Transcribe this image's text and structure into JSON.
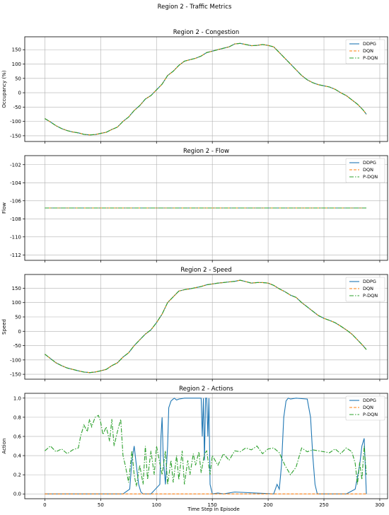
{
  "title": "Region 2 - Traffic Metrics",
  "xlabel": "Time Step in Episode",
  "colors": {
    "DDPG": "#1f77b4",
    "DQN": "#ff7f0e",
    "P-DQN": "#2ca02c"
  },
  "chart_data": [
    {
      "type": "line",
      "title": "Region 2 - Congestion",
      "ylabel": "Occupancy (%)",
      "xlim": [
        -18,
        307
      ],
      "ylim": [
        -170,
        195
      ],
      "xticks": [
        0,
        50,
        100,
        150,
        200,
        250,
        300
      ],
      "yticks": [
        -150,
        -100,
        -50,
        0,
        50,
        100,
        150
      ],
      "grid": true,
      "legend": "top-right",
      "x": [
        0,
        5,
        10,
        15,
        20,
        25,
        30,
        35,
        40,
        45,
        50,
        55,
        60,
        65,
        70,
        75,
        80,
        85,
        90,
        95,
        100,
        105,
        110,
        115,
        120,
        125,
        130,
        135,
        140,
        145,
        150,
        155,
        160,
        165,
        170,
        175,
        180,
        185,
        190,
        195,
        200,
        205,
        210,
        215,
        220,
        225,
        230,
        235,
        240,
        245,
        250,
        255,
        260,
        265,
        270,
        275,
        280,
        285,
        288
      ],
      "series": [
        {
          "name": "DDPG",
          "values": [
            -90,
            -102,
            -115,
            -125,
            -132,
            -137,
            -140,
            -145,
            -147,
            -146,
            -142,
            -138,
            -128,
            -120,
            -100,
            -85,
            -62,
            -45,
            -22,
            -10,
            10,
            30,
            60,
            75,
            95,
            110,
            115,
            120,
            128,
            140,
            145,
            150,
            155,
            160,
            170,
            172,
            168,
            164,
            165,
            168,
            165,
            160,
            140,
            120,
            100,
            80,
            60,
            45,
            35,
            28,
            24,
            20,
            12,
            0,
            -10,
            -25,
            -40,
            -60,
            -75
          ]
        },
        {
          "name": "DQN",
          "values": [
            -90,
            -102,
            -115,
            -125,
            -132,
            -137,
            -140,
            -145,
            -147,
            -146,
            -142,
            -138,
            -128,
            -120,
            -100,
            -85,
            -62,
            -45,
            -22,
            -10,
            10,
            30,
            60,
            75,
            95,
            110,
            115,
            120,
            128,
            140,
            145,
            150,
            155,
            160,
            170,
            172,
            168,
            164,
            165,
            168,
            165,
            160,
            140,
            120,
            100,
            80,
            60,
            45,
            35,
            28,
            24,
            20,
            12,
            0,
            -10,
            -25,
            -40,
            -60,
            -75
          ]
        },
        {
          "name": "P-DQN",
          "values": [
            -90,
            -102,
            -115,
            -125,
            -132,
            -137,
            -140,
            -145,
            -147,
            -146,
            -142,
            -138,
            -128,
            -120,
            -100,
            -85,
            -62,
            -45,
            -22,
            -10,
            10,
            30,
            60,
            75,
            95,
            110,
            115,
            120,
            128,
            140,
            145,
            150,
            155,
            160,
            170,
            172,
            168,
            164,
            165,
            168,
            165,
            160,
            140,
            120,
            100,
            80,
            60,
            45,
            35,
            28,
            24,
            20,
            12,
            0,
            -10,
            -25,
            -40,
            -60,
            -75
          ]
        }
      ]
    },
    {
      "type": "line",
      "title": "Region 2 - Flow",
      "ylabel": "Flow",
      "xlim": [
        -18,
        307
      ],
      "ylim": [
        -112.6,
        -101.0
      ],
      "xticks": [
        0,
        50,
        100,
        150,
        200,
        250,
        300
      ],
      "yticks": [
        -112,
        -110,
        -108,
        -106,
        -104,
        -102
      ],
      "grid": true,
      "legend": "top-right",
      "x": [
        0,
        288
      ],
      "series": [
        {
          "name": "DDPG",
          "values": [
            -106.8,
            -106.8
          ]
        },
        {
          "name": "DQN",
          "values": [
            -106.8,
            -106.8
          ]
        },
        {
          "name": "P-DQN",
          "values": [
            -106.8,
            -106.8
          ]
        }
      ]
    },
    {
      "type": "line",
      "title": "Region 2 - Speed",
      "ylabel": "Speed",
      "xlim": [
        -18,
        307
      ],
      "ylim": [
        -167,
        198
      ],
      "xticks": [
        0,
        50,
        100,
        150,
        200,
        250,
        300
      ],
      "yticks": [
        -150,
        -100,
        -50,
        0,
        50,
        100,
        150
      ],
      "grid": true,
      "legend": "top-right",
      "x": [
        0,
        5,
        10,
        15,
        20,
        25,
        30,
        35,
        40,
        45,
        50,
        55,
        60,
        65,
        70,
        75,
        80,
        85,
        90,
        95,
        100,
        105,
        110,
        115,
        120,
        125,
        130,
        135,
        140,
        145,
        150,
        155,
        160,
        165,
        170,
        175,
        180,
        185,
        190,
        195,
        200,
        205,
        210,
        215,
        220,
        225,
        230,
        235,
        240,
        245,
        250,
        255,
        260,
        265,
        270,
        275,
        280,
        285,
        288
      ],
      "series": [
        {
          "name": "DDPG",
          "values": [
            -80,
            -95,
            -110,
            -120,
            -128,
            -133,
            -138,
            -142,
            -144,
            -142,
            -138,
            -133,
            -120,
            -110,
            -90,
            -75,
            -50,
            -30,
            -10,
            5,
            30,
            60,
            100,
            120,
            140,
            145,
            148,
            152,
            156,
            162,
            165,
            168,
            170,
            172,
            174,
            178,
            173,
            168,
            170,
            170,
            168,
            160,
            148,
            138,
            126,
            118,
            100,
            85,
            70,
            55,
            45,
            38,
            30,
            18,
            5,
            -10,
            -30,
            -50,
            -64
          ]
        },
        {
          "name": "DQN",
          "values": [
            -80,
            -95,
            -110,
            -120,
            -128,
            -133,
            -138,
            -142,
            -144,
            -142,
            -138,
            -133,
            -120,
            -110,
            -90,
            -75,
            -50,
            -30,
            -10,
            5,
            30,
            60,
            100,
            120,
            140,
            145,
            148,
            152,
            156,
            162,
            165,
            168,
            170,
            172,
            174,
            178,
            173,
            168,
            170,
            170,
            168,
            160,
            148,
            138,
            126,
            118,
            100,
            85,
            70,
            55,
            45,
            38,
            30,
            18,
            5,
            -10,
            -30,
            -50,
            -64
          ]
        },
        {
          "name": "P-DQN",
          "values": [
            -80,
            -95,
            -110,
            -120,
            -128,
            -133,
            -138,
            -142,
            -144,
            -142,
            -138,
            -133,
            -120,
            -110,
            -90,
            -75,
            -50,
            -30,
            -10,
            5,
            30,
            60,
            100,
            120,
            140,
            145,
            148,
            152,
            156,
            162,
            165,
            168,
            170,
            172,
            174,
            178,
            173,
            168,
            170,
            170,
            168,
            160,
            148,
            138,
            126,
            118,
            100,
            85,
            70,
            55,
            45,
            38,
            30,
            18,
            5,
            -10,
            -30,
            -50,
            -64
          ]
        }
      ]
    },
    {
      "type": "line",
      "title": "Region 2 - Actions",
      "ylabel": "Action",
      "xlim": [
        -18,
        307
      ],
      "ylim": [
        -0.05,
        1.05
      ],
      "xticks": [
        0,
        50,
        100,
        150,
        200,
        250,
        300
      ],
      "yticks": [
        0.0,
        0.2,
        0.4,
        0.6,
        0.8,
        1.0
      ],
      "grid": true,
      "legend": "top-right",
      "series": [
        {
          "name": "DDPG",
          "x": [
            0,
            70,
            76,
            78,
            80,
            82,
            84,
            86,
            88,
            95,
            103,
            104,
            105,
            106,
            108,
            110,
            111,
            113,
            115,
            116,
            118,
            120,
            125,
            140,
            141,
            142,
            143,
            144,
            145,
            146,
            147,
            148,
            150,
            155,
            160,
            170,
            205,
            208,
            210,
            212,
            214,
            216,
            218,
            220,
            225,
            235,
            238,
            240,
            242,
            244,
            270,
            278,
            282,
            284,
            286,
            288
          ],
          "values": [
            0,
            0,
            0.05,
            0.35,
            0.5,
            0.3,
            0.1,
            0.02,
            0,
            0,
            0.1,
            0.6,
            0.8,
            0.4,
            0.1,
            0.5,
            0.9,
            0.97,
            0.99,
            1.0,
            0.98,
            0.99,
            1.0,
            1.0,
            0.6,
            1.0,
            0.35,
            1.0,
            1.0,
            0.6,
            1.0,
            0.1,
            0,
            0.01,
            0,
            0.02,
            0,
            0.1,
            0.05,
            0.3,
            0.8,
            0.97,
            1.0,
            0.99,
            1.0,
            0.99,
            0.8,
            0.4,
            0.1,
            0,
            0,
            0.05,
            0.3,
            0.5,
            0.58,
            0
          ]
        },
        {
          "name": "DQN",
          "x": [
            0,
            288
          ],
          "values": [
            0,
            0
          ]
        },
        {
          "name": "P-DQN",
          "x": [
            0,
            5,
            10,
            15,
            20,
            25,
            30,
            32,
            35,
            38,
            40,
            42,
            45,
            48,
            50,
            52,
            55,
            58,
            60,
            62,
            65,
            68,
            70,
            72,
            75,
            78,
            80,
            82,
            85,
            88,
            90,
            92,
            95,
            98,
            100,
            103,
            105,
            108,
            110,
            113,
            115,
            118,
            120,
            123,
            125,
            128,
            130,
            133,
            135,
            138,
            140,
            143,
            145,
            148,
            150,
            155,
            160,
            165,
            170,
            175,
            180,
            185,
            190,
            195,
            200,
            205,
            210,
            215,
            220,
            225,
            230,
            235,
            240,
            245,
            250,
            255,
            260,
            265,
            270,
            275,
            278,
            280,
            282,
            284,
            286,
            288
          ],
          "values": [
            0.45,
            0.5,
            0.44,
            0.47,
            0.42,
            0.46,
            0.48,
            0.6,
            0.72,
            0.65,
            0.78,
            0.7,
            0.8,
            0.82,
            0.75,
            0.62,
            0.7,
            0.55,
            0.78,
            0.5,
            0.65,
            0.78,
            0.4,
            0.3,
            0.12,
            0.45,
            0.2,
            0.08,
            0.3,
            0.1,
            0.5,
            0.15,
            0.45,
            0.2,
            0.5,
            0.32,
            0.2,
            0.45,
            0.1,
            0.35,
            0.12,
            0.4,
            0.15,
            0.45,
            0.1,
            0.35,
            0.2,
            0.42,
            0.3,
            0.44,
            0.22,
            0.42,
            0.45,
            0.2,
            0.4,
            0.3,
            0.42,
            0.35,
            0.45,
            0.44,
            0.48,
            0.46,
            0.5,
            0.42,
            0.47,
            0.48,
            0.43,
            0.3,
            0.2,
            0.28,
            0.48,
            0.44,
            0.46,
            0.45,
            0.44,
            0.43,
            0.47,
            0.42,
            0.48,
            0.44,
            0.32,
            0.1,
            0.33,
            0.15,
            0.5,
            0.2
          ]
        }
      ]
    }
  ]
}
